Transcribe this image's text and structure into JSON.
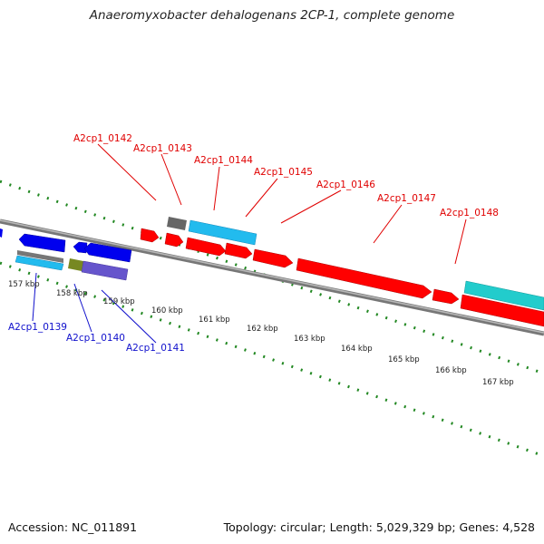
{
  "title": "Anaeromyxobacter dehalogenans 2CP-1, complete genome",
  "footer": {
    "accession": "Accession: NC_011891",
    "topology": "Topology: circular; Length: 5,029,329 bp; Genes: 4,528"
  },
  "ruler_labels": [
    "157 kbp",
    "158 kbp",
    "159 kbp",
    "160 kbp",
    "161 kbp",
    "162 kbp",
    "163 kbp",
    "164 kbp",
    "165 kbp",
    "166 kbp",
    "167 kbp"
  ],
  "forward_gene_labels": [
    "A2cp1_0142",
    "A2cp1_0143",
    "A2cp1_0144",
    "A2cp1_0145",
    "A2cp1_0146",
    "A2cp1_0147",
    "A2cp1_0148"
  ],
  "reverse_gene_labels": [
    "A2cp1_0139",
    "A2cp1_0140",
    "A2cp1_0141"
  ],
  "colors": {
    "forward_cds": "#ff0000",
    "reverse_cds": "#0000ee",
    "cyan_feature": "#22bbee",
    "teal_feature": "#22cccc",
    "grey_feature": "#666666",
    "tick_green": "#228822",
    "backbone": "#888888"
  }
}
